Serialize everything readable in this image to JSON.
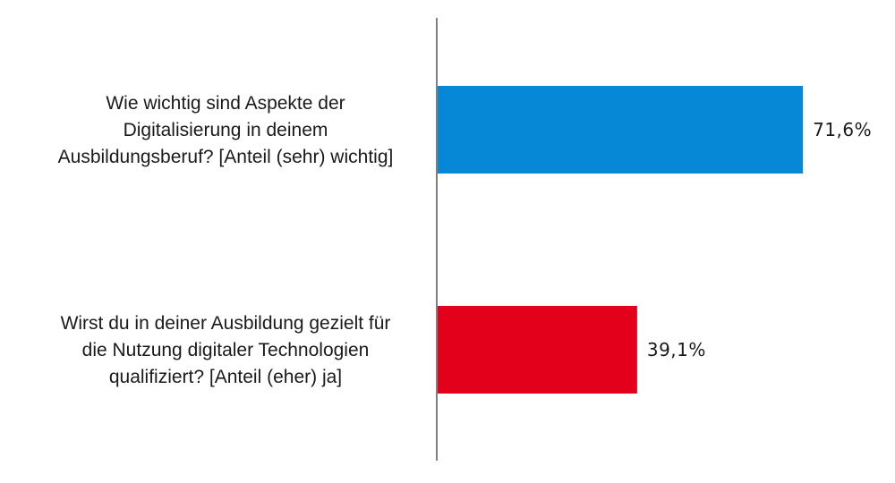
{
  "chart_data": {
    "type": "bar",
    "orientation": "horizontal",
    "categories": [
      "Wie wichtig sind Aspekte der Digitalisierung in deinem Ausbildungsberuf? [Anteil (sehr) wichtig]",
      "Wirst du in deiner Ausbildung gezielt für die Nutzung digitaler Technologien qualifiziert? [Anteil (eher) ja]"
    ],
    "category_lines": [
      [
        "Wie wichtig sind Aspekte der",
        "Digitalisierung in deinem",
        "Ausbildungsberuf? [Anteil (sehr) wichtig]"
      ],
      [
        "Wirst du in deiner Ausbildung gezielt für",
        "die Nutzung digitaler Technologien",
        "qualifiziert? [Anteil (eher) ja]"
      ]
    ],
    "values": [
      71.6,
      39.1
    ],
    "value_labels": [
      "71,6%",
      "39,1%"
    ],
    "colors": [
      "#0788d6",
      "#e2001a"
    ],
    "axis_color": "#808080",
    "xlim": [
      0,
      100
    ],
    "grid": false,
    "legend": "none"
  }
}
